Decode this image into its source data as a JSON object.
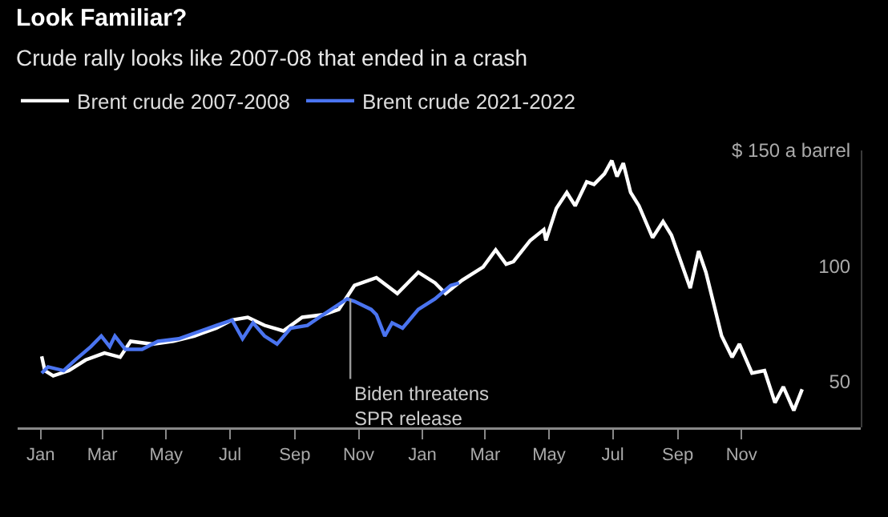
{
  "chart_data": {
    "type": "line",
    "title": "Look Familiar?",
    "subtitle": "Crude rally looks like 2007-08 that ended in a crash",
    "xlim": [
      "2006-12-10",
      "2009-02-23"
    ],
    "xticks": [
      {
        "value": "2007-01-01",
        "label": "Jan"
      },
      {
        "value": "2007-03-01",
        "label": "Mar"
      },
      {
        "value": "2007-05-01",
        "label": "May"
      },
      {
        "value": "2007-07-01",
        "label": "Jul"
      },
      {
        "value": "2007-09-01",
        "label": "Sep"
      },
      {
        "value": "2007-11-01",
        "label": "Nov"
      },
      {
        "value": "2008-01-01",
        "label": "Jan"
      },
      {
        "value": "2008-03-01",
        "label": "Mar"
      },
      {
        "value": "2008-05-01",
        "label": "May"
      },
      {
        "value": "2008-07-01",
        "label": "Jul"
      },
      {
        "value": "2008-09-01",
        "label": "Sep"
      },
      {
        "value": "2008-11-01",
        "label": "Nov"
      }
    ],
    "ylim": [
      30,
      150
    ],
    "yticks": [
      50,
      100,
      {
        "value": 150,
        "label": "$ 150 a barrel"
      }
    ],
    "legend": "top left",
    "grid": false,
    "marker": "none",
    "line_style": "solid",
    "annotations": [
      {
        "text": "Biden threatens\nSPR release",
        "x": "2007-10-21",
        "y": 85.7
      }
    ],
    "series": [
      {
        "name": "Brent crude 2007-2008",
        "color": "#ffffff",
        "x": [
          "2007-01-02",
          "2007-01-05",
          "2007-01-13",
          "2007-01-28",
          "2007-02-13",
          "2007-03-03",
          "2007-03-18",
          "2007-03-28",
          "2007-04-18",
          "2007-05-08",
          "2007-05-28",
          "2007-06-18",
          "2007-07-03",
          "2007-07-18",
          "2007-08-03",
          "2007-08-21",
          "2007-09-08",
          "2007-09-28",
          "2007-10-13",
          "2007-10-28",
          "2007-11-18",
          "2007-12-08",
          "2007-12-28",
          "2008-01-13",
          "2008-01-23",
          "2008-02-08",
          "2008-02-28",
          "2008-03-11",
          "2008-03-21",
          "2008-03-28",
          "2008-04-13",
          "2008-04-26",
          "2008-04-28",
          "2008-05-08",
          "2008-05-18",
          "2008-05-26",
          "2008-06-06",
          "2008-06-13",
          "2008-06-23",
          "2008-06-30",
          "2008-07-05",
          "2008-07-11",
          "2008-07-18",
          "2008-07-26",
          "2008-08-08",
          "2008-08-18",
          "2008-08-26",
          "2008-09-13",
          "2008-09-21",
          "2008-09-28",
          "2008-10-13",
          "2008-10-23",
          "2008-10-30",
          "2008-11-11",
          "2008-11-23",
          "2008-12-03",
          "2008-12-11",
          "2008-12-21",
          "2008-12-29"
        ],
        "values": [
          60.8,
          54.6,
          52.3,
          54.6,
          59.2,
          62.2,
          60.4,
          67.3,
          66.1,
          67.3,
          69.6,
          73,
          76.5,
          77.7,
          74.2,
          71.8,
          77.7,
          78.8,
          81.1,
          91.5,
          94.9,
          88,
          97.2,
          92.6,
          88,
          93.8,
          99.5,
          106.9,
          100.7,
          101.8,
          111,
          115.7,
          111,
          124.9,
          131.8,
          126,
          136.4,
          135.3,
          139.9,
          145.6,
          138.7,
          144.5,
          131.8,
          126,
          112.2,
          119.2,
          113.3,
          90.3,
          106.4,
          97.2,
          69.6,
          60.4,
          66.1,
          53.5,
          54.6,
          40.7,
          47.6,
          37.3,
          46.5
        ]
      },
      {
        "name": "Brent crude 2021-2022",
        "color": "#4a74f0",
        "x": [
          "2007-01-02",
          "2007-01-08",
          "2007-01-23",
          "2007-02-03",
          "2007-02-18",
          "2007-02-28",
          "2007-03-08",
          "2007-03-13",
          "2007-03-23",
          "2007-04-08",
          "2007-04-23",
          "2007-05-13",
          "2007-06-03",
          "2007-06-18",
          "2007-07-03",
          "2007-07-13",
          "2007-07-23",
          "2007-08-03",
          "2007-08-15",
          "2007-08-28",
          "2007-09-13",
          "2007-09-28",
          "2007-10-21",
          "2007-10-28",
          "2007-11-13",
          "2007-11-18",
          "2007-11-26",
          "2007-12-03",
          "2007-12-13",
          "2007-12-28",
          "2008-01-13",
          "2008-01-28",
          "2008-02-05"
        ],
        "values": [
          53.5,
          56.2,
          54.6,
          59.2,
          65,
          69.6,
          65,
          69.6,
          63.8,
          63.8,
          67.3,
          68.4,
          71.8,
          74.2,
          76.5,
          68.4,
          75.3,
          69.6,
          66.1,
          73,
          74.2,
          78.8,
          85.7,
          84.6,
          81.1,
          78.8,
          69.6,
          75.3,
          73,
          81.1,
          85.7,
          91.5,
          92.6
        ]
      }
    ]
  }
}
